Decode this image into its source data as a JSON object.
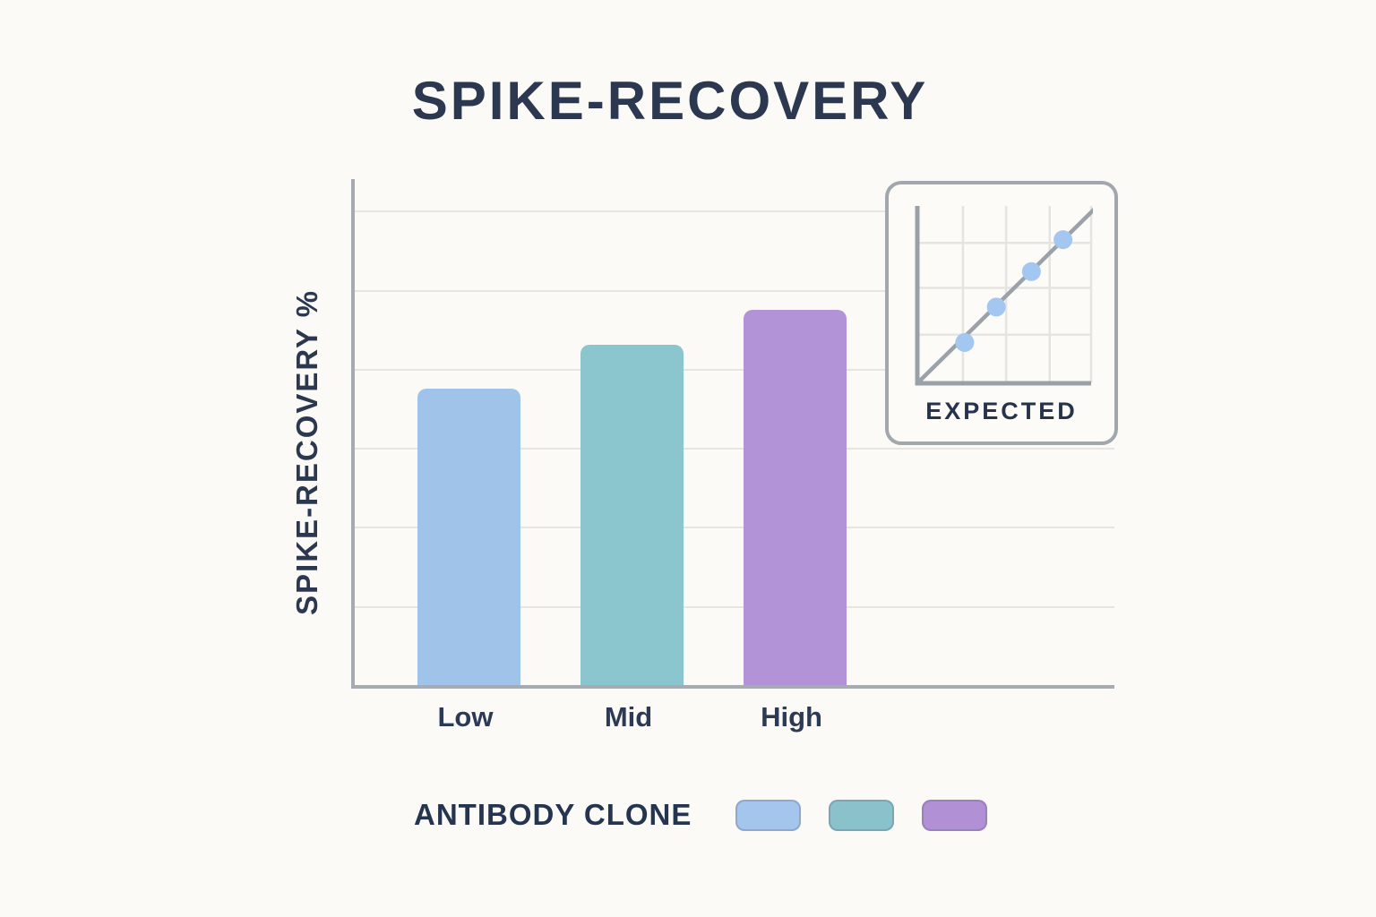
{
  "page": {
    "title": "SPIKE-RECOVERY",
    "background_color": "#fbfaf6",
    "text_color": "#2b3850"
  },
  "chart_data": [
    {
      "type": "bar",
      "title": "SPIKE-RECOVERY",
      "categories": [
        "Low",
        "Mid",
        "High"
      ],
      "values": [
        75,
        86,
        95
      ],
      "bar_colors": [
        "#9fc3e9",
        "#8bc5ce",
        "#b293d8"
      ],
      "xlabel": "ANTIBODY CLONE",
      "ylabel": "SPIKE-RECOVERY %",
      "ylim": [
        0,
        128
      ],
      "grid_step": 20,
      "grid": "horizontal",
      "axis_color": "#a6abb3",
      "grid_color": "#e6e5e0",
      "legend_position": "bottom"
    },
    {
      "type": "scatter",
      "label": "EXPECTED",
      "x": [
        1.4,
        2.3,
        3.3,
        4.2
      ],
      "y": [
        1.2,
        2.2,
        3.2,
        4.1
      ],
      "xlim": [
        0,
        5
      ],
      "ylim": [
        0,
        5
      ],
      "line": {
        "x1": 0.1,
        "y1": 0.1,
        "x2": 5.08,
        "y2": 4.95
      },
      "grid_x": [
        1.35,
        2.58,
        3.82,
        5.0
      ],
      "grid_y": [
        1.42,
        2.74,
        4.01
      ],
      "dot_color": "#a3c7f0",
      "line_color": "#9ba1a9",
      "axis_color": "#9aa0a8",
      "grid_color": "#e5e4e0"
    }
  ],
  "legend": {
    "label": "ANTIBODY CLONE",
    "swatch_colors": [
      "#a4c5ec",
      "#8ac2cb",
      "#b290d6"
    ]
  },
  "inset": {
    "label": "EXPECTED"
  }
}
